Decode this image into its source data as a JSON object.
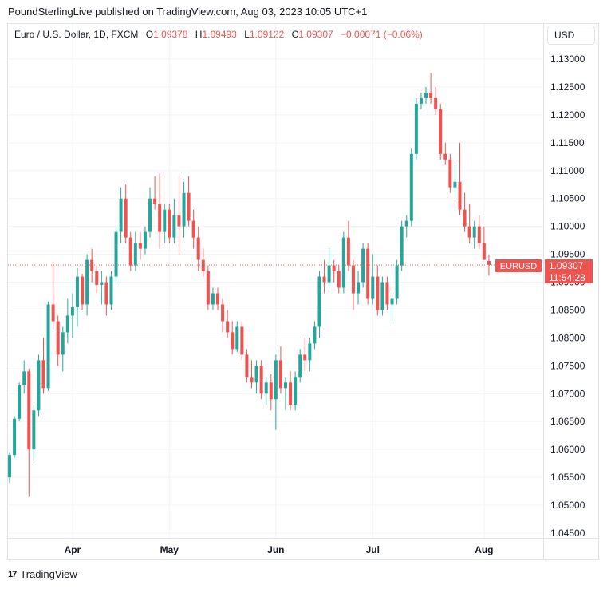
{
  "header": {
    "publisher_line": "PoundSterlingLive published on TradingView.com, Aug 03, 2023 10:05 UTC+1"
  },
  "legend": {
    "symbol": "Euro / U.S. Dollar, 1D, FXCM",
    "o_label": "O",
    "o_value": "1.09378",
    "h_label": "H",
    "h_value": "1.09493",
    "l_label": "L",
    "l_value": "1.09122",
    "c_label": "C",
    "c_value": "1.09307",
    "change": "−0.00071 (−0.06%)"
  },
  "currency_button": {
    "label": "USD"
  },
  "price_tag": {
    "symbol": "EURUSD",
    "price": "1.09307",
    "countdown": "11:54:28"
  },
  "footer": {
    "brand": "TradingView",
    "logo_glyph": "17"
  },
  "colors": {
    "up": "#26a69a",
    "down": "#ef5350",
    "grid": "#f0f3fa",
    "text": "#131722"
  },
  "chart_data": {
    "type": "candlestick",
    "symbol": "EURUSD",
    "timeframe": "1D",
    "y_ticks": [
      "1.13000",
      "1.12500",
      "1.12000",
      "1.11500",
      "1.11000",
      "1.10500",
      "1.10000",
      "1.09500",
      "1.09000",
      "1.08500",
      "1.08000",
      "1.07500",
      "1.07000",
      "1.06500",
      "1.06000",
      "1.05500",
      "1.05000",
      "1.04500"
    ],
    "ylim": [
      1.045,
      1.13
    ],
    "x_ticks": [
      {
        "label": "Apr",
        "index": 13
      },
      {
        "label": "May",
        "index": 33
      },
      {
        "label": "Jun",
        "index": 55
      },
      {
        "label": "Jul",
        "index": 75
      },
      {
        "label": "Aug",
        "index": 98
      }
    ],
    "last_price": 1.09307,
    "candles": [
      [
        1.055,
        1.0595,
        1.054,
        1.059
      ],
      [
        1.059,
        1.066,
        1.0585,
        1.0655
      ],
      [
        1.0655,
        1.072,
        1.065,
        1.0715
      ],
      [
        1.0715,
        1.076,
        1.07,
        1.074
      ],
      [
        1.074,
        1.0745,
        1.0515,
        1.06
      ],
      [
        1.06,
        1.068,
        1.058,
        1.067
      ],
      [
        1.067,
        1.077,
        1.066,
        1.076
      ],
      [
        1.076,
        1.08,
        1.07,
        1.071
      ],
      [
        1.071,
        1.0865,
        1.0705,
        1.086
      ],
      [
        1.086,
        1.0935,
        1.082,
        1.083
      ],
      [
        1.083,
        1.084,
        1.075,
        1.077
      ],
      [
        1.077,
        1.082,
        1.074,
        1.081
      ],
      [
        1.081,
        1.087,
        1.079,
        1.084
      ],
      [
        1.084,
        1.088,
        1.08,
        1.0855
      ],
      [
        1.0855,
        1.0925,
        1.082,
        1.091
      ],
      [
        1.091,
        1.0915,
        1.085,
        1.086
      ],
      [
        1.086,
        1.095,
        1.084,
        1.094
      ],
      [
        1.094,
        1.096,
        1.09,
        1.092
      ],
      [
        1.092,
        1.093,
        1.088,
        1.0895
      ],
      [
        1.0895,
        1.092,
        1.086,
        1.09
      ],
      [
        1.09,
        1.091,
        1.084,
        1.086
      ],
      [
        1.086,
        1.092,
        1.085,
        1.091
      ],
      [
        1.091,
        1.1,
        1.09,
        1.099
      ],
      [
        1.099,
        1.107,
        1.097,
        1.105
      ],
      [
        1.105,
        1.1075,
        1.097,
        1.098
      ],
      [
        1.098,
        1.099,
        1.092,
        1.093
      ],
      [
        1.093,
        1.099,
        1.092,
        1.097
      ],
      [
        1.097,
        1.099,
        1.094,
        1.096
      ],
      [
        1.096,
        1.1,
        1.095,
        1.099
      ],
      [
        1.099,
        1.107,
        1.098,
        1.105
      ],
      [
        1.105,
        1.109,
        1.103,
        1.104
      ],
      [
        1.104,
        1.1095,
        1.096,
        1.099
      ],
      [
        1.099,
        1.104,
        1.097,
        1.103
      ],
      [
        1.103,
        1.104,
        1.097,
        1.098
      ],
      [
        1.098,
        1.105,
        1.097,
        1.102
      ],
      [
        1.102,
        1.109,
        1.095,
        1.1
      ],
      [
        1.1,
        1.108,
        1.098,
        1.106
      ],
      [
        1.106,
        1.109,
        1.1,
        1.101
      ],
      [
        1.101,
        1.103,
        1.096,
        1.098
      ],
      [
        1.098,
        1.1,
        1.092,
        1.094
      ],
      [
        1.094,
        1.096,
        1.091,
        1.092
      ],
      [
        1.092,
        1.093,
        1.085,
        1.086
      ],
      [
        1.086,
        1.089,
        1.085,
        1.088
      ],
      [
        1.088,
        1.089,
        1.085,
        1.086
      ],
      [
        1.086,
        1.087,
        1.081,
        1.083
      ],
      [
        1.083,
        1.085,
        1.08,
        1.081
      ],
      [
        1.081,
        1.083,
        1.077,
        1.078
      ],
      [
        1.078,
        1.083,
        1.0775,
        1.082
      ],
      [
        1.082,
        1.083,
        1.076,
        1.077
      ],
      [
        1.077,
        1.078,
        1.072,
        1.073
      ],
      [
        1.073,
        1.076,
        1.071,
        1.072
      ],
      [
        1.072,
        1.076,
        1.07,
        1.075
      ],
      [
        1.075,
        1.076,
        1.069,
        1.07
      ],
      [
        1.07,
        1.073,
        1.068,
        1.072
      ],
      [
        1.072,
        1.0735,
        1.067,
        1.069
      ],
      [
        1.069,
        1.077,
        1.0635,
        1.076
      ],
      [
        1.076,
        1.0785,
        1.07,
        1.071
      ],
      [
        1.071,
        1.073,
        1.067,
        1.072
      ],
      [
        1.072,
        1.074,
        1.067,
        1.068
      ],
      [
        1.068,
        1.074,
        1.067,
        1.073
      ],
      [
        1.073,
        1.078,
        1.072,
        1.077
      ],
      [
        1.077,
        1.08,
        1.074,
        1.076
      ],
      [
        1.076,
        1.08,
        1.074,
        1.079
      ],
      [
        1.079,
        1.083,
        1.078,
        1.082
      ],
      [
        1.082,
        1.092,
        1.08,
        1.091
      ],
      [
        1.091,
        1.094,
        1.088,
        1.09
      ],
      [
        1.09,
        1.096,
        1.089,
        1.093
      ],
      [
        1.093,
        1.094,
        1.09,
        1.092
      ],
      [
        1.092,
        1.093,
        1.088,
        1.089
      ],
      [
        1.089,
        1.099,
        1.088,
        1.098
      ],
      [
        1.098,
        1.101,
        1.092,
        1.093
      ],
      [
        1.093,
        1.094,
        1.085,
        1.088
      ],
      [
        1.088,
        1.092,
        1.086,
        1.09
      ],
      [
        1.09,
        1.097,
        1.089,
        1.096
      ],
      [
        1.096,
        1.097,
        1.086,
        1.087
      ],
      [
        1.087,
        1.095,
        1.086,
        1.091
      ],
      [
        1.091,
        1.093,
        1.084,
        1.085
      ],
      [
        1.085,
        1.091,
        1.084,
        1.09
      ],
      [
        1.09,
        1.091,
        1.085,
        1.086
      ],
      [
        1.086,
        1.088,
        1.083,
        1.087
      ],
      [
        1.087,
        1.094,
        1.086,
        1.093
      ],
      [
        1.093,
        1.101,
        1.092,
        1.1
      ],
      [
        1.1,
        1.102,
        1.098,
        1.101
      ],
      [
        1.101,
        1.114,
        1.1,
        1.113
      ],
      [
        1.113,
        1.123,
        1.112,
        1.122
      ],
      [
        1.122,
        1.124,
        1.121,
        1.123
      ],
      [
        1.123,
        1.125,
        1.122,
        1.124
      ],
      [
        1.124,
        1.1275,
        1.122,
        1.123
      ],
      [
        1.123,
        1.125,
        1.12,
        1.121
      ],
      [
        1.121,
        1.122,
        1.112,
        1.113
      ],
      [
        1.113,
        1.115,
        1.111,
        1.112
      ],
      [
        1.112,
        1.113,
        1.106,
        1.107
      ],
      [
        1.107,
        1.111,
        1.105,
        1.108
      ],
      [
        1.108,
        1.115,
        1.102,
        1.103
      ],
      [
        1.103,
        1.106,
        1.099,
        1.1
      ],
      [
        1.1,
        1.104,
        1.097,
        1.098
      ],
      [
        1.098,
        1.101,
        1.096,
        1.1
      ],
      [
        1.1,
        1.102,
        1.096,
        1.097
      ],
      [
        1.097,
        1.1,
        1.094,
        1.094
      ],
      [
        1.0938,
        1.0949,
        1.0912,
        1.0931
      ]
    ]
  }
}
